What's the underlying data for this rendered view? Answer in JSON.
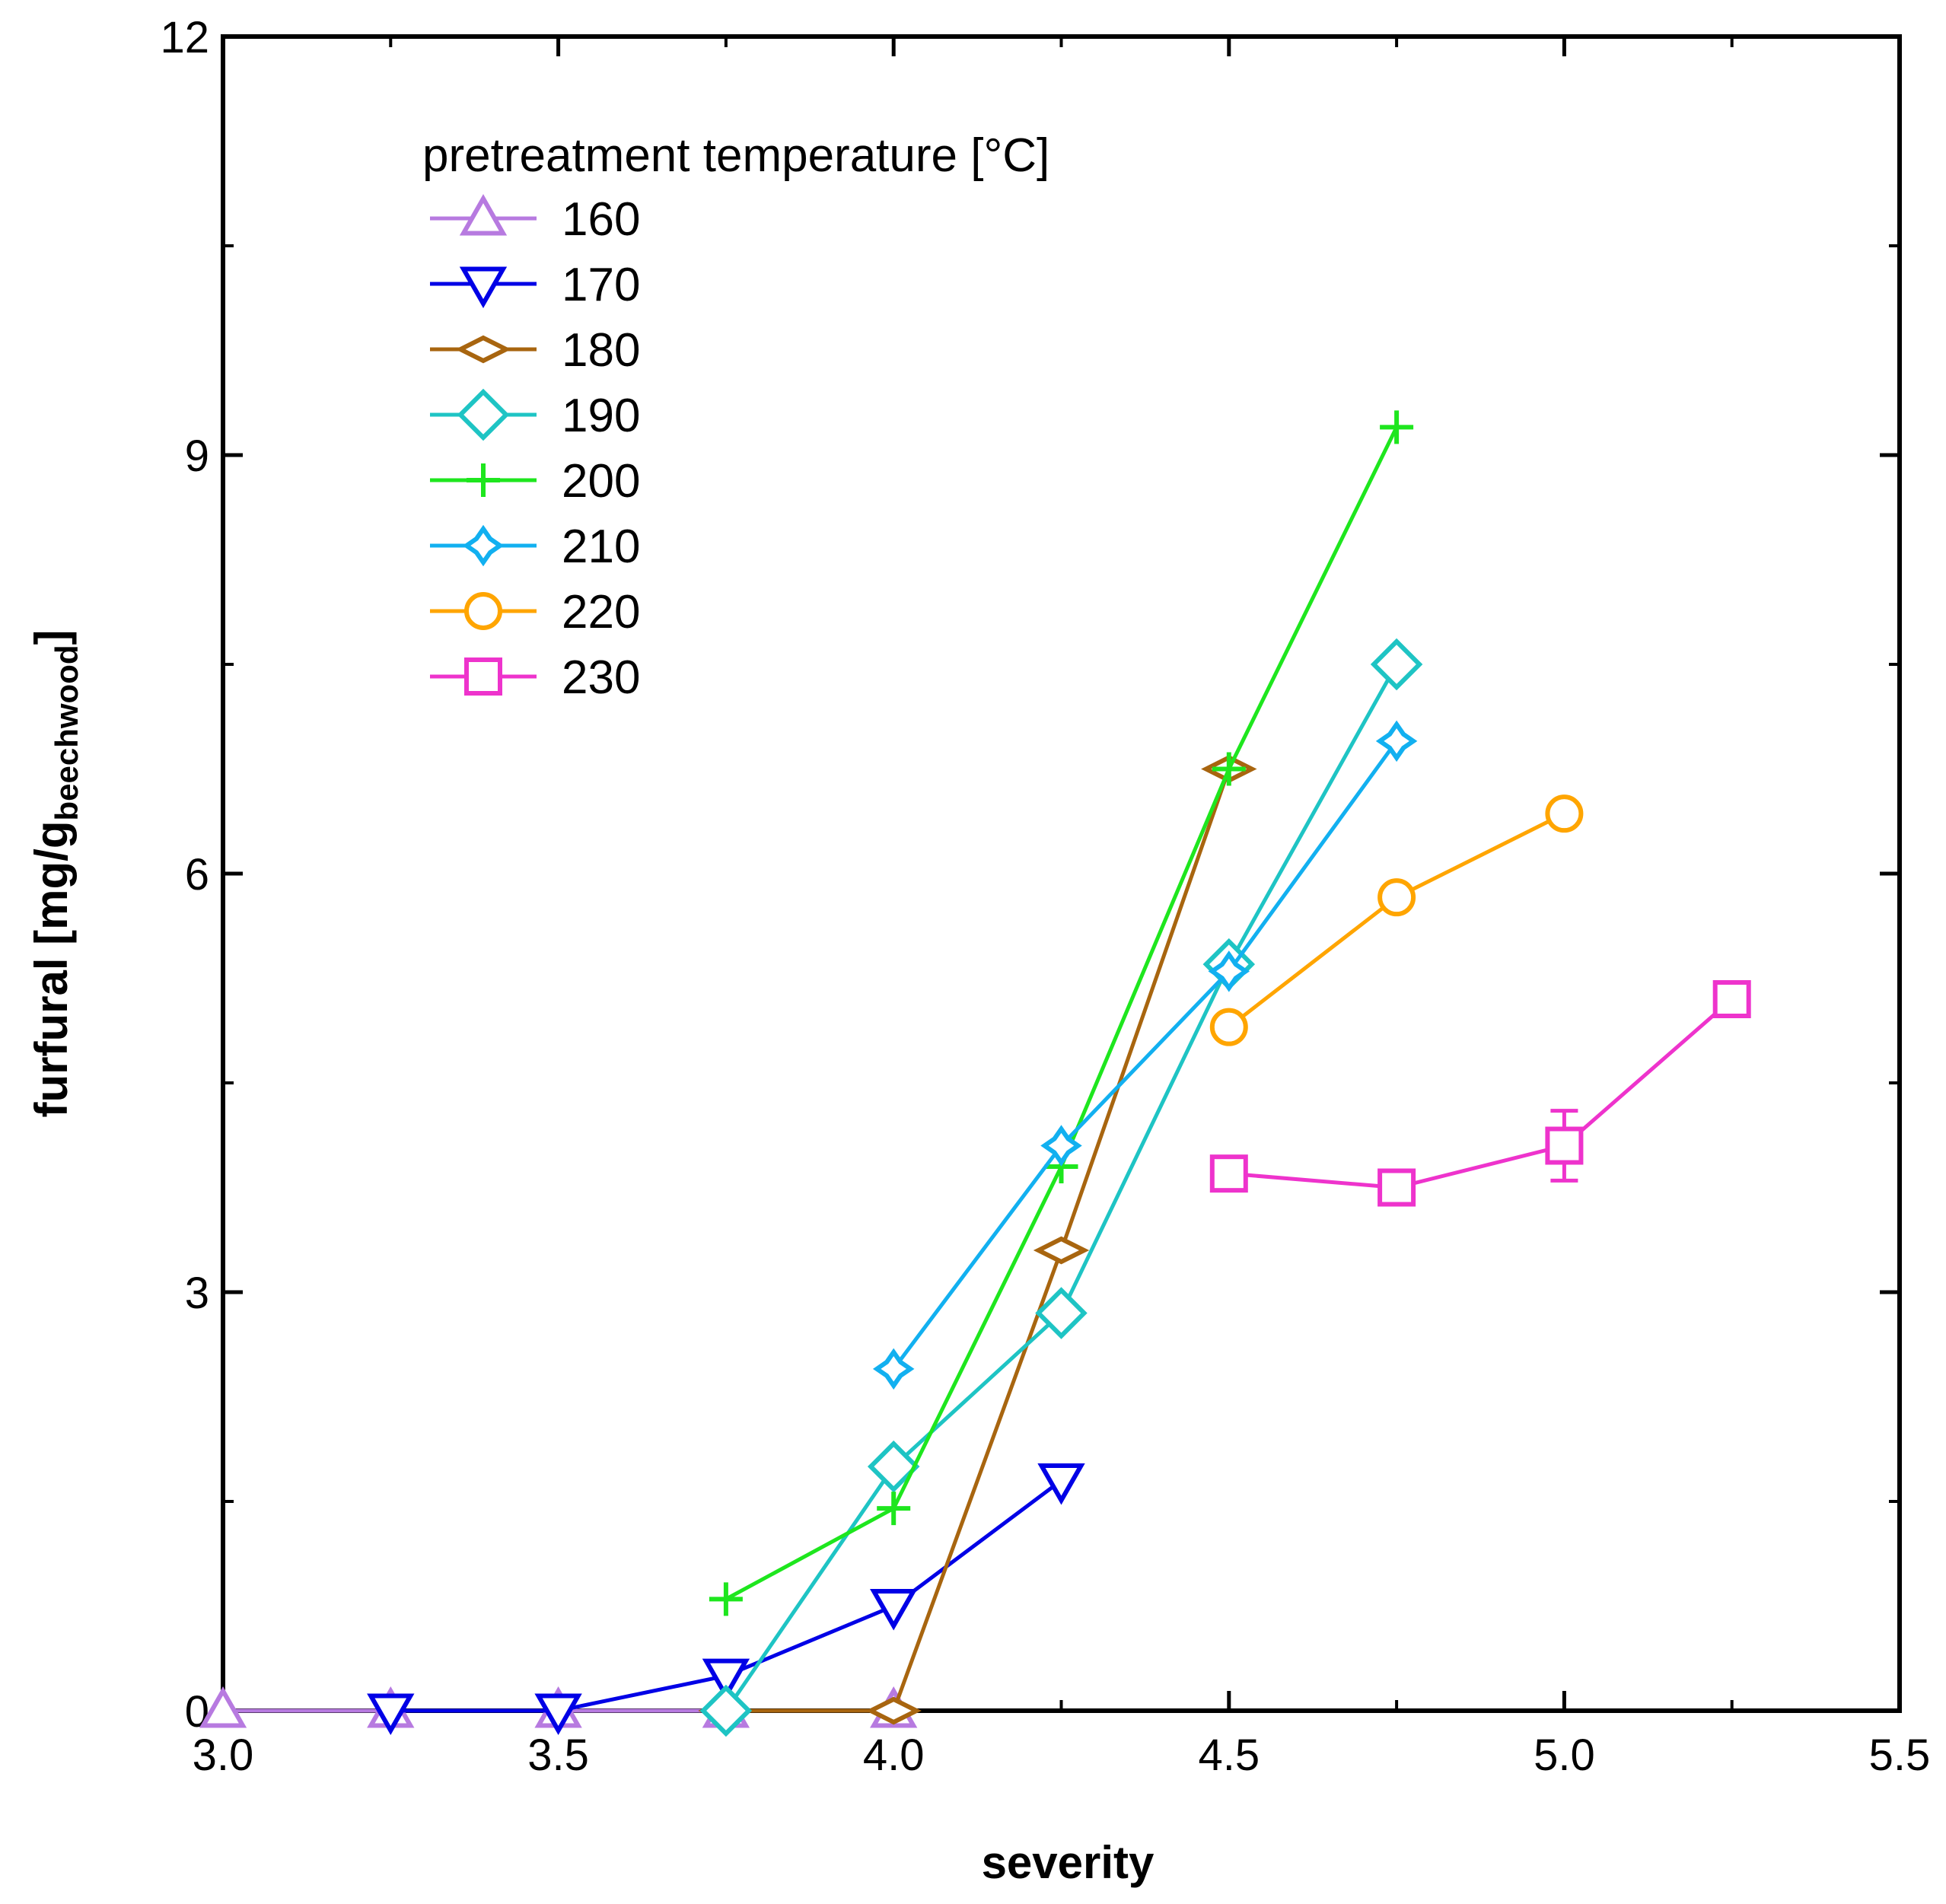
{
  "chart_data": {
    "type": "line",
    "title": "",
    "xlabel": "severity",
    "ylabel_main": "furfural  [mg/g",
    "ylabel_sub": "beechwood",
    "ylabel_end": "]",
    "xlim": [
      3.0,
      5.5
    ],
    "ylim": [
      0,
      12
    ],
    "xticks": [
      3.0,
      3.5,
      4.0,
      4.5,
      5.0,
      5.5
    ],
    "xtick_labels": [
      "3.0",
      "3.5",
      "4.0",
      "4.5",
      "5.0",
      "5.5"
    ],
    "yticks": [
      0,
      3,
      6,
      9,
      12
    ],
    "ytick_labels": [
      "0",
      "3",
      "6",
      "9",
      "12"
    ],
    "grid": false,
    "legend": {
      "title": "pretreatment temperature [°C]",
      "placement": "top-left"
    },
    "series": [
      {
        "name": "160",
        "color": "#b77ae0",
        "marker": "triangle-up",
        "x": [
          3.0,
          3.25,
          3.5,
          3.75,
          4.0
        ],
        "y": [
          0,
          0,
          0,
          0,
          0
        ]
      },
      {
        "name": "170",
        "color": "#0000e6",
        "marker": "triangle-down",
        "x": [
          3.25,
          3.5,
          3.75,
          4.0,
          4.25
        ],
        "y": [
          0,
          0,
          0.25,
          0.75,
          1.65
        ]
      },
      {
        "name": "180",
        "color": "#a8650f",
        "marker": "flat-diamond",
        "x": [
          3.75,
          4.0,
          4.25,
          4.5
        ],
        "y": [
          0,
          0,
          3.3,
          6.75
        ]
      },
      {
        "name": "190",
        "color": "#1ec4c4",
        "marker": "diamond",
        "x": [
          3.75,
          4.0,
          4.25,
          4.5,
          4.75
        ],
        "y": [
          0,
          1.75,
          2.85,
          5.35,
          7.5
        ]
      },
      {
        "name": "200",
        "color": "#1ee61e",
        "marker": "plus",
        "x": [
          3.75,
          4.0,
          4.25,
          4.5,
          4.75
        ],
        "y": [
          0.8,
          1.45,
          3.9,
          6.75,
          9.2
        ]
      },
      {
        "name": "210",
        "color": "#12b0f0",
        "marker": "star4",
        "x": [
          4.0,
          4.25,
          4.5,
          4.75
        ],
        "y": [
          2.45,
          4.05,
          5.3,
          6.95
        ]
      },
      {
        "name": "220",
        "color": "#ffa500",
        "marker": "circle",
        "x": [
          4.5,
          4.75,
          5.0
        ],
        "y": [
          4.9,
          5.83,
          6.43
        ]
      },
      {
        "name": "230",
        "color": "#ee33cc",
        "marker": "square",
        "x": [
          4.5,
          4.75,
          5.0,
          5.25
        ],
        "y": [
          3.85,
          3.75,
          4.05,
          5.1
        ],
        "yerr": [
          0,
          0,
          0.25,
          0
        ]
      }
    ]
  }
}
